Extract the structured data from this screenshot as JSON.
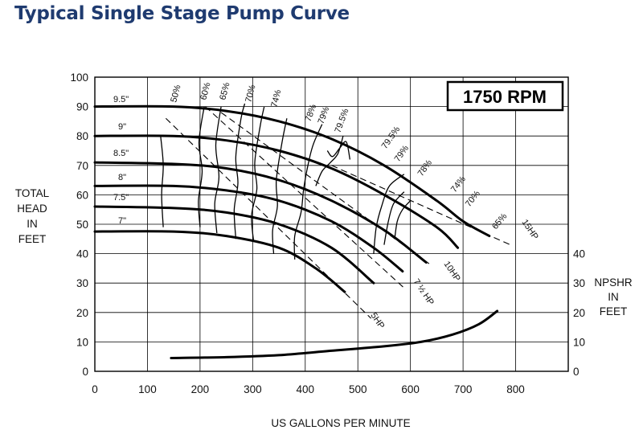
{
  "title": "Typical Single Stage Pump Curve",
  "chart_data": {
    "type": "line",
    "title": "Typical Single Stage Pump Curve",
    "badge": "1750 RPM",
    "xlabel": "US GALLONS PER MINUTE",
    "ylabel": [
      "TOTAL",
      "HEAD",
      "IN",
      "FEET"
    ],
    "y2label": [
      "NPSHR",
      "IN",
      "FEET"
    ],
    "xlim": [
      0,
      900
    ],
    "ylim": [
      0,
      100
    ],
    "xticks": [
      "0",
      "100",
      "200",
      "300",
      "400",
      "500",
      "600",
      "700",
      "800"
    ],
    "yticks": [
      "0",
      "10",
      "20",
      "30",
      "40",
      "50",
      "60",
      "70",
      "80",
      "90",
      "100"
    ],
    "y2ticks": [
      "0",
      "10",
      "20",
      "30",
      "40"
    ],
    "grid": true,
    "impeller_curves": [
      {
        "name": "9.5\"",
        "x": [
          0,
          150,
          250,
          350,
          450,
          550,
          650,
          700,
          750
        ],
        "y": [
          90,
          90,
          88.5,
          85,
          79,
          70,
          58,
          51,
          46
        ]
      },
      {
        "name": "9\"",
        "x": [
          0,
          150,
          250,
          350,
          450,
          550,
          650,
          690
        ],
        "y": [
          80,
          80,
          78.5,
          75,
          69,
          60,
          49,
          42
        ]
      },
      {
        "name": "8.5\"",
        "x": [
          0,
          150,
          250,
          350,
          450,
          550,
          630
        ],
        "y": [
          71,
          70.5,
          69,
          65,
          58,
          48,
          37
        ]
      },
      {
        "name": "8\"",
        "x": [
          0,
          150,
          250,
          350,
          450,
          530,
          585
        ],
        "y": [
          63,
          63,
          61.5,
          58,
          51,
          42,
          34
        ]
      },
      {
        "name": "7.5\"",
        "x": [
          0,
          150,
          250,
          350,
          450,
          530
        ],
        "y": [
          56,
          55.5,
          54,
          50,
          42,
          30
        ]
      },
      {
        "name": "7\"",
        "x": [
          0,
          150,
          250,
          350,
          420,
          475
        ],
        "y": [
          47.5,
          47.5,
          46,
          42,
          35,
          27
        ]
      }
    ],
    "efficiency_labels": [
      "50%",
      "60%",
      "65%",
      "70%",
      "74%",
      "78%",
      "79%",
      "79.5%",
      "79.5%",
      "79%",
      "78%",
      "74%",
      "70%",
      "65%"
    ],
    "hp_labels": [
      "5HP",
      "7 ½ HP",
      "10HP",
      "15HP"
    ],
    "npshr": {
      "x": [
        145,
        250,
        350,
        450,
        550,
        620,
        680,
        730,
        765
      ],
      "y": [
        4.5,
        4.8,
        5.5,
        7,
        8.5,
        10,
        12.5,
        16,
        20.5
      ]
    }
  }
}
